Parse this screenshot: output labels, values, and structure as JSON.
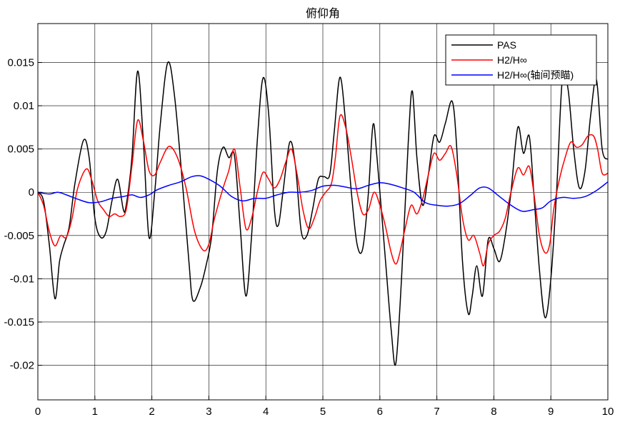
{
  "chart_data": {
    "type": "line",
    "title": "俯仰角",
    "xlabel": "",
    "ylabel": "",
    "xlim": [
      0,
      10
    ],
    "ylim": [
      -0.024,
      0.0195
    ],
    "xticks": [
      0,
      1,
      2,
      3,
      4,
      5,
      6,
      7,
      8,
      9,
      10
    ],
    "yticks": [
      0.015,
      0.01,
      0.005,
      0,
      -0.005,
      -0.01,
      -0.015,
      -0.02
    ],
    "xtick_labels": [
      "0",
      "1",
      "2",
      "3",
      "4",
      "5",
      "6",
      "7",
      "8",
      "9",
      "10"
    ],
    "ytick_labels": [
      "0.015",
      "0.01",
      "0.005",
      "0",
      "-0.005",
      "-0.01",
      "-0.015",
      "-0.02"
    ],
    "grid": true,
    "legend_position": "top-right",
    "series": [
      {
        "name": "PAS",
        "color": "#000000",
        "points": [
          [
            0,
            0
          ],
          [
            0.1,
            -0.001
          ],
          [
            0.2,
            -0.006
          ],
          [
            0.3,
            -0.0123
          ],
          [
            0.38,
            -0.008
          ],
          [
            0.45,
            -0.0062
          ],
          [
            0.55,
            -0.004
          ],
          [
            0.65,
            0.001
          ],
          [
            0.8,
            0.006
          ],
          [
            0.9,
            0.004
          ],
          [
            1.0,
            -0.003
          ],
          [
            1.1,
            -0.0052
          ],
          [
            1.2,
            -0.0045
          ],
          [
            1.3,
            -0.001
          ],
          [
            1.4,
            0.0015
          ],
          [
            1.5,
            -0.002
          ],
          [
            1.55,
            -0.0015
          ],
          [
            1.65,
            0.004
          ],
          [
            1.75,
            0.014
          ],
          [
            1.85,
            0.006
          ],
          [
            1.95,
            -0.0052
          ],
          [
            2.05,
            0.0
          ],
          [
            2.15,
            0.008
          ],
          [
            2.28,
            0.015
          ],
          [
            2.4,
            0.011
          ],
          [
            2.55,
            0.0
          ],
          [
            2.65,
            -0.008
          ],
          [
            2.72,
            -0.0125
          ],
          [
            2.85,
            -0.011
          ],
          [
            2.95,
            -0.0085
          ],
          [
            3.05,
            -0.005
          ],
          [
            3.15,
            0.0025
          ],
          [
            3.25,
            0.0052
          ],
          [
            3.35,
            0.004
          ],
          [
            3.45,
            0.0042
          ],
          [
            3.55,
            -0.004
          ],
          [
            3.65,
            -0.012
          ],
          [
            3.75,
            -0.005
          ],
          [
            3.85,
            0.006
          ],
          [
            3.95,
            0.0132
          ],
          [
            4.05,
            0.009
          ],
          [
            4.15,
            -0.002
          ],
          [
            4.22,
            -0.0038
          ],
          [
            4.3,
            0.0
          ],
          [
            4.42,
            0.0058
          ],
          [
            4.52,
            0.003
          ],
          [
            4.62,
            -0.0045
          ],
          [
            4.72,
            -0.005
          ],
          [
            4.82,
            -0.002
          ],
          [
            4.92,
            0.0015
          ],
          [
            5.02,
            0.0018
          ],
          [
            5.12,
            0.002
          ],
          [
            5.2,
            0.007
          ],
          [
            5.3,
            0.0133
          ],
          [
            5.4,
            0.008
          ],
          [
            5.5,
            0.0
          ],
          [
            5.6,
            -0.006
          ],
          [
            5.7,
            -0.0065
          ],
          [
            5.8,
            0.0
          ],
          [
            5.88,
            0.0078
          ],
          [
            5.95,
            0.004
          ],
          [
            6.1,
            -0.008
          ],
          [
            6.2,
            -0.016
          ],
          [
            6.28,
            -0.0198
          ],
          [
            6.38,
            -0.01
          ],
          [
            6.5,
            0.006
          ],
          [
            6.57,
            0.0117
          ],
          [
            6.65,
            0.004
          ],
          [
            6.75,
            -0.0015
          ],
          [
            6.85,
            0.002
          ],
          [
            6.95,
            0.0065
          ],
          [
            7.05,
            0.0058
          ],
          [
            7.15,
            0.008
          ],
          [
            7.27,
            0.0105
          ],
          [
            7.35,
            0.005
          ],
          [
            7.45,
            -0.008
          ],
          [
            7.55,
            -0.014
          ],
          [
            7.62,
            -0.012
          ],
          [
            7.7,
            -0.0085
          ],
          [
            7.8,
            -0.012
          ],
          [
            7.9,
            -0.0055
          ],
          [
            8.0,
            -0.0065
          ],
          [
            8.1,
            -0.008
          ],
          [
            8.2,
            -0.005
          ],
          [
            8.3,
            0.0
          ],
          [
            8.42,
            0.0075
          ],
          [
            8.52,
            0.0045
          ],
          [
            8.62,
            0.0065
          ],
          [
            8.7,
            0.0
          ],
          [
            8.8,
            -0.009
          ],
          [
            8.9,
            -0.0145
          ],
          [
            9.0,
            -0.01
          ],
          [
            9.1,
            0.0
          ],
          [
            9.2,
            0.013
          ],
          [
            9.3,
            0.012
          ],
          [
            9.4,
            0.005
          ],
          [
            9.5,
            0.0005
          ],
          [
            9.6,
            0.0025
          ],
          [
            9.7,
            0.009
          ],
          [
            9.8,
            0.013
          ],
          [
            9.9,
            0.005
          ],
          [
            10.0,
            0.0038
          ]
        ]
      },
      {
        "name": "H2/H∞",
        "color": "#ff0000",
        "points": [
          [
            0,
            0
          ],
          [
            0.1,
            -0.0015
          ],
          [
            0.2,
            -0.0045
          ],
          [
            0.3,
            -0.0062
          ],
          [
            0.4,
            -0.005
          ],
          [
            0.5,
            -0.0052
          ],
          [
            0.6,
            -0.003
          ],
          [
            0.7,
            0.0005
          ],
          [
            0.85,
            0.0027
          ],
          [
            0.95,
            0.0013
          ],
          [
            1.05,
            -0.001
          ],
          [
            1.15,
            -0.002
          ],
          [
            1.25,
            -0.0028
          ],
          [
            1.35,
            -0.0025
          ],
          [
            1.45,
            -0.0028
          ],
          [
            1.55,
            -0.002
          ],
          [
            1.65,
            0.003
          ],
          [
            1.75,
            0.0083
          ],
          [
            1.85,
            0.006
          ],
          [
            1.95,
            0.0025
          ],
          [
            2.05,
            0.002
          ],
          [
            2.15,
            0.0035
          ],
          [
            2.3,
            0.0053
          ],
          [
            2.45,
            0.004
          ],
          [
            2.6,
            0.0005
          ],
          [
            2.75,
            -0.0045
          ],
          [
            2.9,
            -0.0067
          ],
          [
            3.0,
            -0.006
          ],
          [
            3.1,
            -0.003
          ],
          [
            3.25,
            0.0005
          ],
          [
            3.35,
            0.0025
          ],
          [
            3.45,
            0.005
          ],
          [
            3.55,
            0.0005
          ],
          [
            3.65,
            -0.0042
          ],
          [
            3.75,
            -0.003
          ],
          [
            3.85,
            0.0
          ],
          [
            3.95,
            0.0023
          ],
          [
            4.05,
            0.0015
          ],
          [
            4.15,
            0.0005
          ],
          [
            4.25,
            0.0015
          ],
          [
            4.35,
            0.0035
          ],
          [
            4.45,
            0.005
          ],
          [
            4.55,
            0.002
          ],
          [
            4.65,
            -0.002
          ],
          [
            4.75,
            -0.0042
          ],
          [
            4.85,
            -0.003
          ],
          [
            4.95,
            -0.001
          ],
          [
            5.05,
            0.0
          ],
          [
            5.15,
            0.001
          ],
          [
            5.22,
            0.004
          ],
          [
            5.3,
            0.0088
          ],
          [
            5.4,
            0.0075
          ],
          [
            5.5,
            0.004
          ],
          [
            5.6,
            0.0
          ],
          [
            5.7,
            -0.0025
          ],
          [
            5.8,
            -0.002
          ],
          [
            5.9,
            0.0
          ],
          [
            6.0,
            -0.0015
          ],
          [
            6.1,
            -0.004
          ],
          [
            6.2,
            -0.007
          ],
          [
            6.28,
            -0.0083
          ],
          [
            6.35,
            -0.007
          ],
          [
            6.45,
            -0.004
          ],
          [
            6.55,
            -0.0015
          ],
          [
            6.65,
            -0.0025
          ],
          [
            6.75,
            -0.0008
          ],
          [
            6.85,
            0.002
          ],
          [
            6.95,
            0.0045
          ],
          [
            7.05,
            0.0037
          ],
          [
            7.15,
            0.0045
          ],
          [
            7.25,
            0.0053
          ],
          [
            7.35,
            0.002
          ],
          [
            7.45,
            -0.003
          ],
          [
            7.55,
            -0.0055
          ],
          [
            7.65,
            -0.005
          ],
          [
            7.75,
            -0.007
          ],
          [
            7.82,
            -0.0085
          ],
          [
            7.9,
            -0.006
          ],
          [
            8.0,
            -0.005
          ],
          [
            8.1,
            -0.0045
          ],
          [
            8.2,
            -0.003
          ],
          [
            8.3,
            0.0
          ],
          [
            8.42,
            0.0028
          ],
          [
            8.52,
            0.002
          ],
          [
            8.62,
            0.003
          ],
          [
            8.7,
            0.0
          ],
          [
            8.8,
            -0.005
          ],
          [
            8.9,
            -0.007
          ],
          [
            8.98,
            -0.006
          ],
          [
            9.05,
            -0.002
          ],
          [
            9.15,
            0.0015
          ],
          [
            9.25,
            0.004
          ],
          [
            9.35,
            0.0058
          ],
          [
            9.45,
            0.0052
          ],
          [
            9.55,
            0.0055
          ],
          [
            9.65,
            0.0065
          ],
          [
            9.75,
            0.0065
          ],
          [
            9.82,
            0.005
          ],
          [
            9.9,
            0.0022
          ],
          [
            10.0,
            0.0022
          ]
        ]
      },
      {
        "name": "H2/H∞(轴间预瞄)",
        "color": "#0000ff",
        "points": [
          [
            0,
            0
          ],
          [
            0.2,
            -0.0002
          ],
          [
            0.35,
            0.0
          ],
          [
            0.5,
            -0.0003
          ],
          [
            0.7,
            -0.0008
          ],
          [
            0.9,
            -0.0012
          ],
          [
            1.1,
            -0.0011
          ],
          [
            1.3,
            -0.0007
          ],
          [
            1.5,
            -0.0005
          ],
          [
            1.65,
            -0.0003
          ],
          [
            1.8,
            -0.0006
          ],
          [
            1.95,
            -0.0003
          ],
          [
            2.1,
            0.0003
          ],
          [
            2.3,
            0.0008
          ],
          [
            2.5,
            0.0012
          ],
          [
            2.7,
            0.0018
          ],
          [
            2.85,
            0.0019
          ],
          [
            3.0,
            0.0015
          ],
          [
            3.2,
            0.0007
          ],
          [
            3.4,
            -0.0005
          ],
          [
            3.6,
            -0.001
          ],
          [
            3.8,
            -0.0007
          ],
          [
            4.0,
            -0.0007
          ],
          [
            4.2,
            -0.0003
          ],
          [
            4.4,
            0.0
          ],
          [
            4.6,
            0.0
          ],
          [
            4.8,
            0.0002
          ],
          [
            5.0,
            0.0007
          ],
          [
            5.2,
            0.0008
          ],
          [
            5.4,
            0.0006
          ],
          [
            5.6,
            0.0004
          ],
          [
            5.8,
            0.0008
          ],
          [
            6.0,
            0.0011
          ],
          [
            6.2,
            0.0009
          ],
          [
            6.4,
            0.0005
          ],
          [
            6.6,
            0.0
          ],
          [
            6.8,
            -0.0012
          ],
          [
            7.0,
            -0.0015
          ],
          [
            7.2,
            -0.0016
          ],
          [
            7.4,
            -0.0013
          ],
          [
            7.6,
            -0.0003
          ],
          [
            7.75,
            0.0005
          ],
          [
            7.9,
            0.0005
          ],
          [
            8.1,
            -0.0005
          ],
          [
            8.3,
            -0.0015
          ],
          [
            8.5,
            -0.0022
          ],
          [
            8.7,
            -0.002
          ],
          [
            8.85,
            -0.0018
          ],
          [
            9.0,
            -0.001
          ],
          [
            9.2,
            -0.0006
          ],
          [
            9.4,
            -0.0007
          ],
          [
            9.6,
            -0.0005
          ],
          [
            9.8,
            0.0002
          ],
          [
            10.0,
            0.0012
          ]
        ]
      }
    ]
  }
}
